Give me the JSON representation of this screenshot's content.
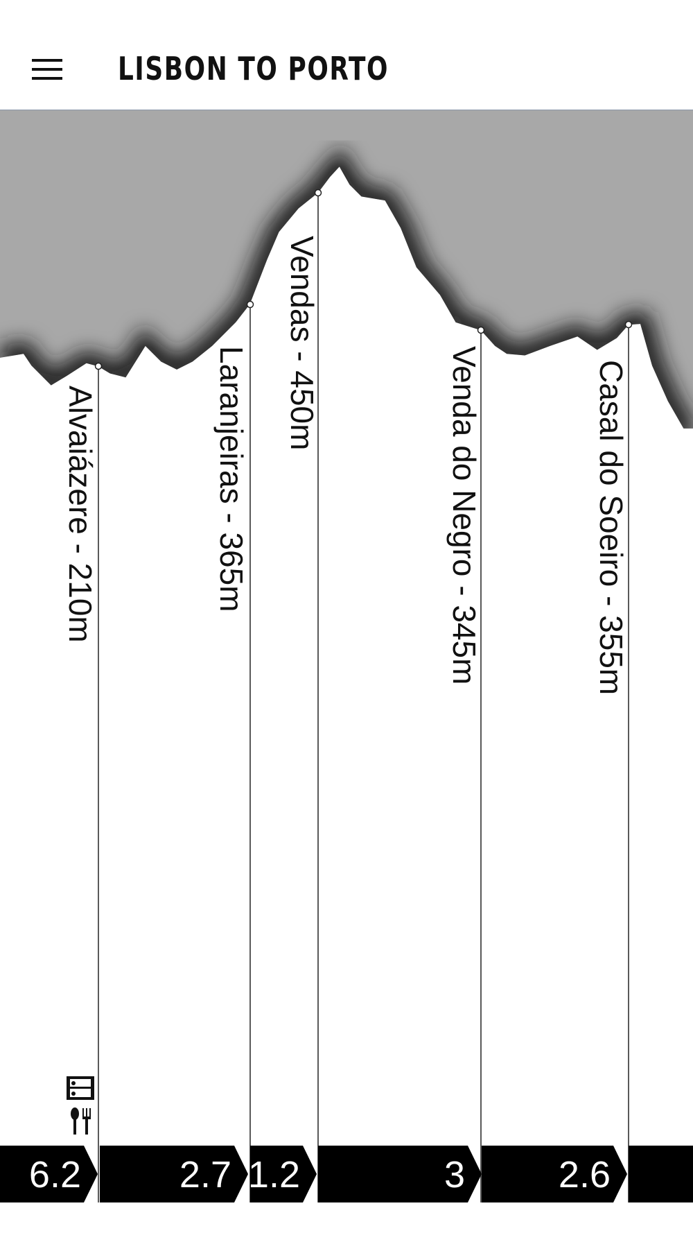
{
  "header": {
    "title": "LISBON TO PORTO"
  },
  "waypoints": [
    {
      "label": "Alvaiázere - 210m"
    },
    {
      "label": "Laranjeiras - 365m"
    },
    {
      "label": "Vendas - 450m"
    },
    {
      "label": "Venda do Negro - 345m"
    },
    {
      "label": "Casal do Soeiro - 355m"
    }
  ],
  "segments": [
    "6.2",
    "2.7",
    "1.2",
    "3",
    "2.6"
  ]
}
